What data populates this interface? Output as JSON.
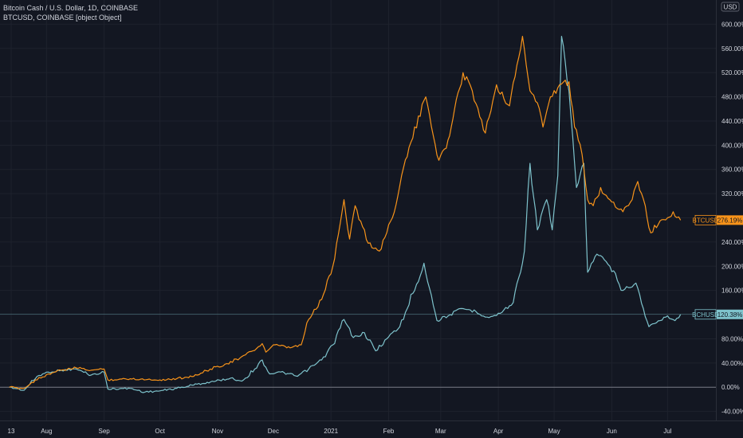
{
  "legend": {
    "line1": "Bitcoin Cash / U.S. Dollar, 1D, COINBASE",
    "line2": "BTCUSD, COINBASE [object Object]"
  },
  "currency_label": "USD",
  "colors": {
    "background": "#131722",
    "grid": "#1e222d",
    "text": "#d1d4dc",
    "btc": "#f7931a",
    "bch": "#7ec3cc",
    "zero_line": "#787b86"
  },
  "chart_data": {
    "type": "line",
    "ylim": [
      -55,
      640
    ],
    "y_ticks": [
      -40,
      0,
      40,
      80,
      120,
      160,
      200,
      240,
      280,
      320,
      360,
      400,
      440,
      480,
      520,
      560,
      600
    ],
    "y_tick_labels": [
      "-40.00%",
      "0.00%",
      "40.00%",
      "80.00%",
      "",
      "160.00%",
      "200.00%",
      "240.00%",
      "",
      "320.00%",
      "360.00%",
      "400.00%",
      "440.00%",
      "480.00%",
      "520.00%",
      "560.00%",
      "600.00%"
    ],
    "x_labels": [
      {
        "date": "2020-07-13",
        "label": "13"
      },
      {
        "date": "2020-08-01",
        "label": "Aug"
      },
      {
        "date": "2020-09-01",
        "label": "Sep"
      },
      {
        "date": "2020-10-01",
        "label": "Oct"
      },
      {
        "date": "2020-11-01",
        "label": "Nov"
      },
      {
        "date": "2020-12-01",
        "label": "Dec"
      },
      {
        "date": "2021-01-01",
        "label": "2021"
      },
      {
        "date": "2021-02-01",
        "label": "Feb"
      },
      {
        "date": "2021-03-01",
        "label": "Mar"
      },
      {
        "date": "2021-04-01",
        "label": "Apr"
      },
      {
        "date": "2021-05-01",
        "label": "May"
      },
      {
        "date": "2021-06-01",
        "label": "Jun"
      },
      {
        "date": "2021-07-01",
        "label": "Jul"
      }
    ],
    "series": [
      {
        "name": "BTCUSD",
        "color": "#f7931a",
        "last_label": "276.19%",
        "last_value": 276.19,
        "points": [
          [
            "2020-07-12",
            0
          ],
          [
            "2020-07-20",
            -2
          ],
          [
            "2020-07-26",
            12
          ],
          [
            "2020-08-02",
            22
          ],
          [
            "2020-08-09",
            28
          ],
          [
            "2020-08-17",
            32
          ],
          [
            "2020-08-25",
            28
          ],
          [
            "2020-09-01",
            30
          ],
          [
            "2020-09-03",
            12
          ],
          [
            "2020-09-15",
            14
          ],
          [
            "2020-10-01",
            12
          ],
          [
            "2020-10-10",
            14
          ],
          [
            "2020-10-21",
            20
          ],
          [
            "2020-10-28",
            30
          ],
          [
            "2020-11-05",
            38
          ],
          [
            "2020-11-13",
            48
          ],
          [
            "2020-11-20",
            60
          ],
          [
            "2020-11-25",
            72
          ],
          [
            "2020-11-27",
            58
          ],
          [
            "2020-12-01",
            70
          ],
          [
            "2020-12-10",
            65
          ],
          [
            "2020-12-16",
            70
          ],
          [
            "2020-12-20",
            112
          ],
          [
            "2020-12-27",
            145
          ],
          [
            "2021-01-02",
            200
          ],
          [
            "2021-01-08",
            310
          ],
          [
            "2021-01-11",
            245
          ],
          [
            "2021-01-14",
            300
          ],
          [
            "2021-01-21",
            238
          ],
          [
            "2021-01-27",
            225
          ],
          [
            "2021-02-03",
            280
          ],
          [
            "2021-02-08",
            350
          ],
          [
            "2021-02-13",
            405
          ],
          [
            "2021-02-21",
            480
          ],
          [
            "2021-02-28",
            375
          ],
          [
            "2021-03-04",
            395
          ],
          [
            "2021-03-13",
            520
          ],
          [
            "2021-03-18",
            490
          ],
          [
            "2021-03-25",
            420
          ],
          [
            "2021-03-31",
            500
          ],
          [
            "2021-04-07",
            465
          ],
          [
            "2021-04-14",
            580
          ],
          [
            "2021-04-18",
            490
          ],
          [
            "2021-04-22",
            470
          ],
          [
            "2021-04-25",
            430
          ],
          [
            "2021-04-29",
            480
          ],
          [
            "2021-05-03",
            495
          ],
          [
            "2021-05-09",
            505
          ],
          [
            "2021-05-12",
            430
          ],
          [
            "2021-05-16",
            385
          ],
          [
            "2021-05-19",
            310
          ],
          [
            "2021-05-22",
            300
          ],
          [
            "2021-05-26",
            330
          ],
          [
            "2021-05-31",
            310
          ],
          [
            "2021-06-07",
            290
          ],
          [
            "2021-06-12",
            310
          ],
          [
            "2021-06-15",
            340
          ],
          [
            "2021-06-19",
            300
          ],
          [
            "2021-06-22",
            255
          ],
          [
            "2021-06-27",
            275
          ],
          [
            "2021-07-01",
            280
          ],
          [
            "2021-07-04",
            290
          ],
          [
            "2021-07-08",
            276.19
          ]
        ]
      },
      {
        "name": "BCHUSD",
        "color": "#7ec3cc",
        "last_label": "120.38%",
        "last_value": 120.38,
        "points": [
          [
            "2020-07-12",
            0
          ],
          [
            "2020-07-20",
            -5
          ],
          [
            "2020-07-27",
            18
          ],
          [
            "2020-08-02",
            25
          ],
          [
            "2020-08-09",
            28
          ],
          [
            "2020-08-17",
            30
          ],
          [
            "2020-08-25",
            20
          ],
          [
            "2020-09-01",
            25
          ],
          [
            "2020-09-03",
            -3
          ],
          [
            "2020-09-15",
            -2
          ],
          [
            "2020-09-23",
            -8
          ],
          [
            "2020-10-01",
            -6
          ],
          [
            "2020-10-10",
            -2
          ],
          [
            "2020-10-21",
            5
          ],
          [
            "2020-10-31",
            10
          ],
          [
            "2020-11-08",
            15
          ],
          [
            "2020-11-14",
            10
          ],
          [
            "2020-11-21",
            30
          ],
          [
            "2020-11-25",
            45
          ],
          [
            "2020-11-29",
            22
          ],
          [
            "2020-12-05",
            25
          ],
          [
            "2020-12-14",
            18
          ],
          [
            "2020-12-20",
            30
          ],
          [
            "2020-12-27",
            45
          ],
          [
            "2021-01-02",
            70
          ],
          [
            "2021-01-08",
            112
          ],
          [
            "2021-01-13",
            82
          ],
          [
            "2021-01-19",
            90
          ],
          [
            "2021-01-25",
            60
          ],
          [
            "2021-01-31",
            80
          ],
          [
            "2021-02-07",
            100
          ],
          [
            "2021-02-14",
            155
          ],
          [
            "2021-02-20",
            205
          ],
          [
            "2021-02-27",
            110
          ],
          [
            "2021-03-06",
            120
          ],
          [
            "2021-03-13",
            130
          ],
          [
            "2021-03-20",
            125
          ],
          [
            "2021-03-27",
            115
          ],
          [
            "2021-04-02",
            122
          ],
          [
            "2021-04-09",
            140
          ],
          [
            "2021-04-15",
            225
          ],
          [
            "2021-04-18",
            370
          ],
          [
            "2021-04-22",
            260
          ],
          [
            "2021-04-27",
            310
          ],
          [
            "2021-04-30",
            260
          ],
          [
            "2021-05-03",
            350
          ],
          [
            "2021-05-05",
            580
          ],
          [
            "2021-05-09",
            490
          ],
          [
            "2021-05-13",
            330
          ],
          [
            "2021-05-17",
            370
          ],
          [
            "2021-05-19",
            190
          ],
          [
            "2021-05-24",
            220
          ],
          [
            "2021-05-31",
            200
          ],
          [
            "2021-06-07",
            160
          ],
          [
            "2021-06-14",
            172
          ],
          [
            "2021-06-18",
            130
          ],
          [
            "2021-06-21",
            100
          ],
          [
            "2021-06-27",
            110
          ],
          [
            "2021-07-01",
            118
          ],
          [
            "2021-07-05",
            110
          ],
          [
            "2021-07-08",
            120.38
          ]
        ]
      }
    ]
  }
}
